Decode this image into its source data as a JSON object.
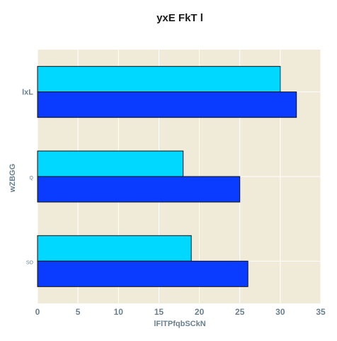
{
  "chart_data": {
    "type": "bar",
    "orientation": "horizontal",
    "title": "yxE  FkT l",
    "xlabel": "lFlTPfqbSCkN",
    "ylabel": "wZBGG",
    "categories": [
      "lxL",
      "Q",
      "SO"
    ],
    "series": [
      {
        "values": [
          30,
          18,
          19
        ],
        "color": "#00d8ff"
      },
      {
        "values": [
          32,
          25,
          26
        ],
        "color": "#0a3cff"
      }
    ],
    "xlim": [
      0,
      35
    ],
    "xticks": [
      0,
      5,
      10,
      15,
      20,
      25,
      30,
      35
    ],
    "grid": true,
    "legend": false,
    "background_color": "#f0ead8",
    "grid_color": "#ffffff"
  }
}
